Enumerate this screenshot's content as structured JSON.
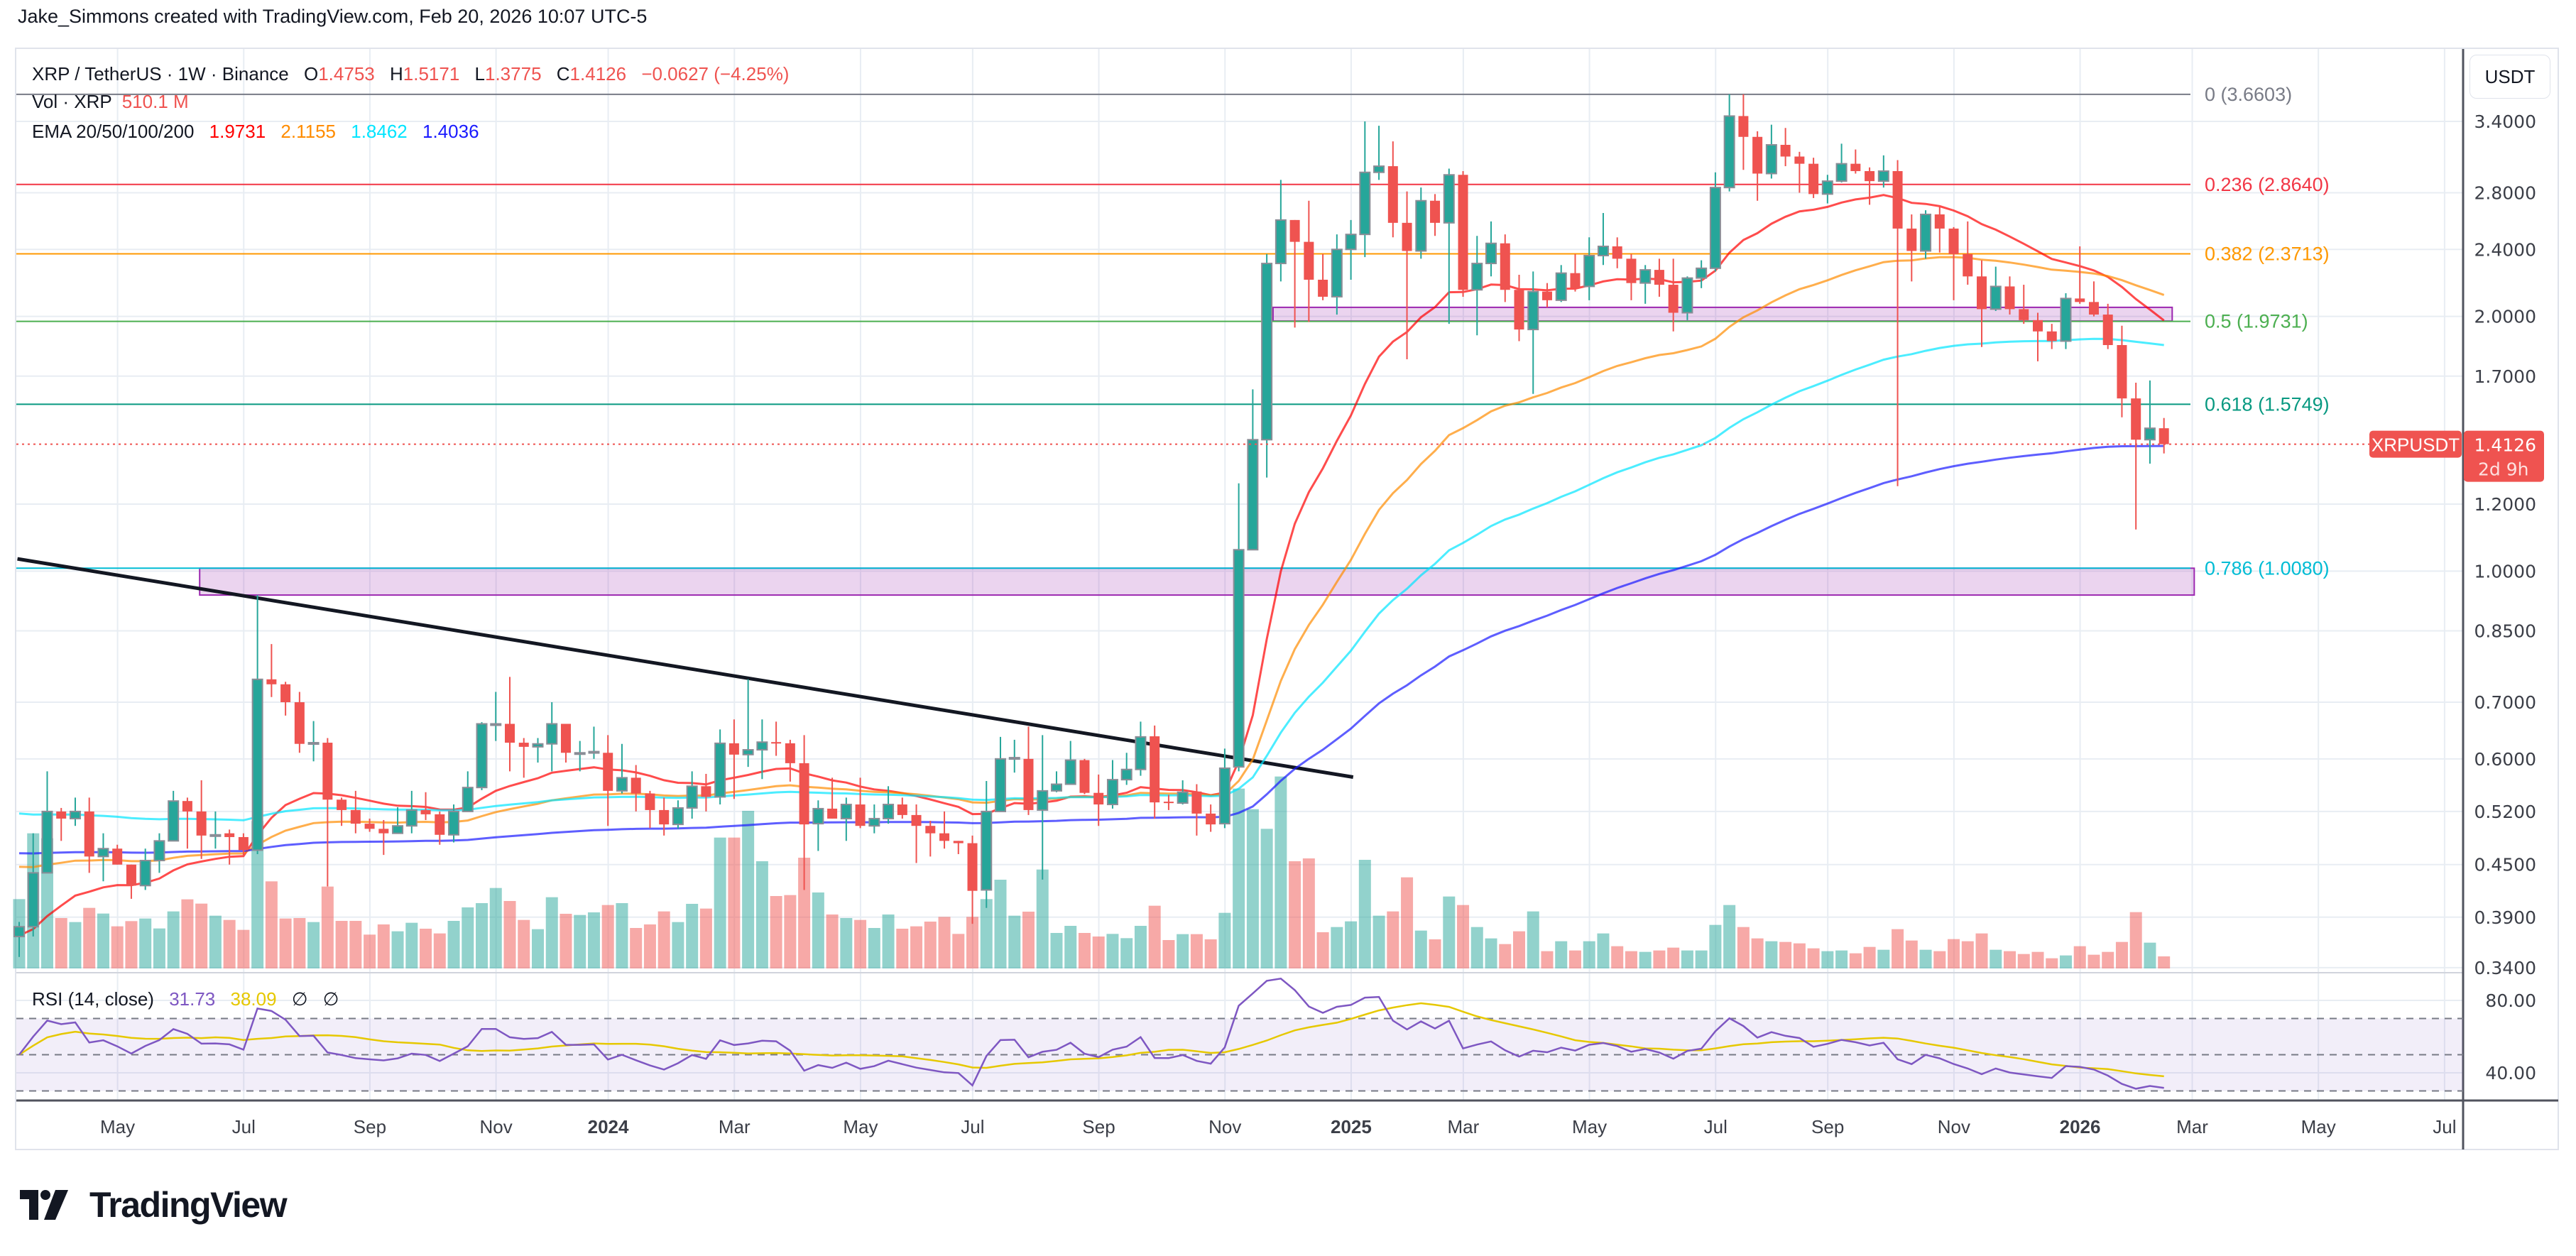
{
  "header": {
    "title": "Jake_Simmons created with TradingView.com, Feb 20, 2026 10:07 UTC-5"
  },
  "legend": {
    "symbol": "XRP / TetherUS · 1W · Binance",
    "o_label": "O",
    "open": "1.4753",
    "h_label": "H",
    "high": "1.5171",
    "l_label": "L",
    "low": "1.3775",
    "c_label": "C",
    "close": "1.4126",
    "change": "−0.0627 (−4.25%)",
    "vol_label": "Vol · XRP",
    "vol_value": "510.1 M",
    "ema_label": "EMA 20/50/100/200",
    "ema_values": [
      "1.9731",
      "2.1155",
      "1.8462",
      "1.4036"
    ]
  },
  "rsi_legend": {
    "label": "RSI (14, close)",
    "value": "31.73",
    "ma_value": "38.09",
    "extra": [
      "∅",
      "∅"
    ]
  },
  "price_axis": {
    "currency": "USDT"
  },
  "last_price": {
    "symbol": "XRPUSDT",
    "price": "1.4126",
    "countdown": "2d 9h"
  },
  "brand": {
    "logo_text": "TradingView"
  },
  "colors": {
    "up": "#26a69a",
    "down": "#ef5350",
    "ema20": "#ff0000",
    "ema50": "#ff8c00",
    "ema100": "#00e5ff",
    "ema200": "#1a1aff",
    "rsi": "#7e57c2",
    "rsi_ma": "#e6c800",
    "zone": "#9c27b0",
    "trendline": "#131722"
  },
  "chart_data": {
    "type": "candlestick",
    "title": "XRP / TetherUS · 1W · Binance",
    "interval": "1W",
    "first_bar_date": "2023-03-13",
    "y_scale": "log",
    "ylim": [
      0.34,
      3.66
    ],
    "y_ticks": [
      {
        "label": "3.4000",
        "value": 3.4
      },
      {
        "label": "2.8000",
        "value": 2.8
      },
      {
        "label": "2.4000",
        "value": 2.4
      },
      {
        "label": "2.0000",
        "value": 2.0
      },
      {
        "label": "1.7000",
        "value": 1.7
      },
      {
        "label": "1.2000",
        "value": 1.2
      },
      {
        "label": "1.0000",
        "value": 1.0
      },
      {
        "label": "0.8500",
        "value": 0.85
      },
      {
        "label": "0.7000",
        "value": 0.7
      },
      {
        "label": "0.6000",
        "value": 0.6
      },
      {
        "label": "0.5200",
        "value": 0.52
      },
      {
        "label": "0.4500",
        "value": 0.45
      },
      {
        "label": "0.3900",
        "value": 0.39
      },
      {
        "label": "0.3400",
        "value": 0.34
      }
    ],
    "x_ticks": [
      {
        "label": "May",
        "date": "2023-05-01",
        "bold": false
      },
      {
        "label": "Jul",
        "date": "2023-07-03",
        "bold": false
      },
      {
        "label": "Sep",
        "date": "2023-09-04",
        "bold": false
      },
      {
        "label": "Nov",
        "date": "2023-11-06",
        "bold": false
      },
      {
        "label": "2024",
        "date": "2024-01-01",
        "bold": true
      },
      {
        "label": "Mar",
        "date": "2024-03-04",
        "bold": false
      },
      {
        "label": "May",
        "date": "2024-05-06",
        "bold": false
      },
      {
        "label": "Jul",
        "date": "2024-07-01",
        "bold": false
      },
      {
        "label": "Sep",
        "date": "2024-09-02",
        "bold": false
      },
      {
        "label": "Nov",
        "date": "2024-11-04",
        "bold": false
      },
      {
        "label": "2025",
        "date": "2025-01-06",
        "bold": true
      },
      {
        "label": "Mar",
        "date": "2025-03-03",
        "bold": false
      },
      {
        "label": "May",
        "date": "2025-05-05",
        "bold": false
      },
      {
        "label": "Jul",
        "date": "2025-07-07",
        "bold": false
      },
      {
        "label": "Sep",
        "date": "2025-09-01",
        "bold": false
      },
      {
        "label": "Nov",
        "date": "2025-11-03",
        "bold": false
      },
      {
        "label": "2026",
        "date": "2026-01-05",
        "bold": true
      },
      {
        "label": "Mar",
        "date": "2026-03-02",
        "bold": false
      },
      {
        "label": "May",
        "date": "2026-05-04",
        "bold": false
      },
      {
        "label": "Jul",
        "date": "2026-07-06",
        "bold": false
      }
    ],
    "ohlc": [
      [
        0.37,
        0.385,
        0.35,
        0.38
      ],
      [
        0.38,
        0.49,
        0.37,
        0.44
      ],
      [
        0.44,
        0.58,
        0.44,
        0.52
      ],
      [
        0.52,
        0.525,
        0.48,
        0.51
      ],
      [
        0.51,
        0.54,
        0.5,
        0.52
      ],
      [
        0.52,
        0.54,
        0.44,
        0.46
      ],
      [
        0.46,
        0.49,
        0.43,
        0.47
      ],
      [
        0.47,
        0.475,
        0.45,
        0.45
      ],
      [
        0.45,
        0.45,
        0.41,
        0.425
      ],
      [
        0.425,
        0.47,
        0.42,
        0.455
      ],
      [
        0.455,
        0.49,
        0.44,
        0.48
      ],
      [
        0.48,
        0.55,
        0.48,
        0.535
      ],
      [
        0.535,
        0.54,
        0.47,
        0.52
      ],
      [
        0.52,
        0.566,
        0.457,
        0.487
      ],
      [
        0.488,
        0.52,
        0.47,
        0.488
      ],
      [
        0.49,
        0.495,
        0.45,
        0.485
      ],
      [
        0.485,
        0.49,
        0.46,
        0.468
      ],
      [
        0.468,
        0.937,
        0.463,
        0.745
      ],
      [
        0.745,
        0.82,
        0.71,
        0.735
      ],
      [
        0.735,
        0.74,
        0.675,
        0.7
      ],
      [
        0.7,
        0.72,
        0.61,
        0.625
      ],
      [
        0.627,
        0.665,
        0.596,
        0.627
      ],
      [
        0.627,
        0.635,
        0.424,
        0.537
      ],
      [
        0.537,
        0.54,
        0.5,
        0.522
      ],
      [
        0.522,
        0.55,
        0.49,
        0.503
      ],
      [
        0.503,
        0.51,
        0.492,
        0.496
      ],
      [
        0.496,
        0.508,
        0.462,
        0.49
      ],
      [
        0.49,
        0.526,
        0.49,
        0.5
      ],
      [
        0.5,
        0.55,
        0.49,
        0.522
      ],
      [
        0.522,
        0.548,
        0.508,
        0.516
      ],
      [
        0.516,
        0.52,
        0.475,
        0.488
      ],
      [
        0.488,
        0.53,
        0.478,
        0.52
      ],
      [
        0.52,
        0.58,
        0.52,
        0.555
      ],
      [
        0.555,
        0.663,
        0.551,
        0.66
      ],
      [
        0.66,
        0.72,
        0.63,
        0.66
      ],
      [
        0.66,
        0.75,
        0.58,
        0.627
      ],
      [
        0.627,
        0.635,
        0.57,
        0.62
      ],
      [
        0.62,
        0.635,
        0.594,
        0.625
      ],
      [
        0.625,
        0.7,
        0.58,
        0.66
      ],
      [
        0.66,
        0.66,
        0.594,
        0.61
      ],
      [
        0.61,
        0.63,
        0.58,
        0.61
      ],
      [
        0.61,
        0.655,
        0.6,
        0.612
      ],
      [
        0.61,
        0.64,
        0.5,
        0.55
      ],
      [
        0.55,
        0.625,
        0.546,
        0.57
      ],
      [
        0.57,
        0.59,
        0.52,
        0.546
      ],
      [
        0.546,
        0.55,
        0.497,
        0.522
      ],
      [
        0.522,
        0.54,
        0.487,
        0.502
      ],
      [
        0.502,
        0.536,
        0.496,
        0.525
      ],
      [
        0.525,
        0.58,
        0.51,
        0.557
      ],
      [
        0.557,
        0.576,
        0.52,
        0.541
      ],
      [
        0.541,
        0.65,
        0.53,
        0.626
      ],
      [
        0.626,
        0.668,
        0.538,
        0.607
      ],
      [
        0.607,
        0.745,
        0.587,
        0.615
      ],
      [
        0.615,
        0.668,
        0.568,
        0.628
      ],
      [
        0.628,
        0.664,
        0.605,
        0.626
      ],
      [
        0.626,
        0.632,
        0.564,
        0.593
      ],
      [
        0.593,
        0.64,
        0.42,
        0.502
      ],
      [
        0.503,
        0.536,
        0.467,
        0.524
      ],
      [
        0.524,
        0.57,
        0.51,
        0.51
      ],
      [
        0.51,
        0.54,
        0.48,
        0.53
      ],
      [
        0.53,
        0.57,
        0.497,
        0.5
      ],
      [
        0.5,
        0.53,
        0.49,
        0.51
      ],
      [
        0.51,
        0.557,
        0.503,
        0.53
      ],
      [
        0.53,
        0.54,
        0.51,
        0.515
      ],
      [
        0.515,
        0.53,
        0.452,
        0.5
      ],
      [
        0.5,
        0.507,
        0.46,
        0.49
      ],
      [
        0.49,
        0.52,
        0.47,
        0.48
      ],
      [
        0.48,
        0.48,
        0.463,
        0.477
      ],
      [
        0.477,
        0.487,
        0.383,
        0.419
      ],
      [
        0.42,
        0.565,
        0.4,
        0.52
      ],
      [
        0.52,
        0.637,
        0.52,
        0.6
      ],
      [
        0.6,
        0.632,
        0.578,
        0.602
      ],
      [
        0.6,
        0.655,
        0.515,
        0.522
      ],
      [
        0.522,
        0.64,
        0.432,
        0.55
      ],
      [
        0.55,
        0.58,
        0.548,
        0.56
      ],
      [
        0.56,
        0.63,
        0.56,
        0.598
      ],
      [
        0.598,
        0.6,
        0.545,
        0.547
      ],
      [
        0.547,
        0.575,
        0.5,
        0.53
      ],
      [
        0.53,
        0.598,
        0.524,
        0.567
      ],
      [
        0.567,
        0.61,
        0.559,
        0.583
      ],
      [
        0.583,
        0.664,
        0.573,
        0.637
      ],
      [
        0.638,
        0.657,
        0.51,
        0.533
      ],
      [
        0.534,
        0.544,
        0.522,
        0.532
      ],
      [
        0.532,
        0.566,
        0.53,
        0.548
      ],
      [
        0.549,
        0.56,
        0.487,
        0.517
      ],
      [
        0.517,
        0.53,
        0.492,
        0.502
      ],
      [
        0.503,
        0.617,
        0.497,
        0.585
      ],
      [
        0.587,
        1.27,
        0.58,
        1.06
      ],
      [
        1.06,
        1.64,
        1.06,
        1.43
      ],
      [
        1.43,
        2.37,
        1.29,
        2.31
      ],
      [
        2.31,
        2.9,
        2.2,
        2.6
      ],
      [
        2.6,
        2.6,
        1.94,
        2.45
      ],
      [
        2.45,
        2.74,
        1.97,
        2.21
      ],
      [
        2.21,
        2.37,
        2.09,
        2.11
      ],
      [
        2.11,
        2.5,
        2.01,
        2.4
      ],
      [
        2.4,
        2.6,
        2.21,
        2.5
      ],
      [
        2.5,
        3.4,
        2.35,
        2.96
      ],
      [
        2.96,
        3.36,
        2.9,
        3.01
      ],
      [
        3.01,
        3.22,
        2.48,
        2.58
      ],
      [
        2.58,
        2.81,
        1.78,
        2.39
      ],
      [
        2.39,
        2.84,
        2.34,
        2.74
      ],
      [
        2.74,
        2.79,
        2.49,
        2.58
      ],
      [
        2.58,
        2.99,
        1.96,
        2.94
      ],
      [
        2.94,
        2.97,
        2.11,
        2.15
      ],
      [
        2.15,
        2.49,
        1.9,
        2.31
      ],
      [
        2.31,
        2.59,
        2.23,
        2.44
      ],
      [
        2.44,
        2.5,
        2.08,
        2.15
      ],
      [
        2.15,
        2.24,
        1.87,
        1.93
      ],
      [
        1.93,
        2.26,
        1.62,
        2.14
      ],
      [
        2.14,
        2.19,
        2.05,
        2.09
      ],
      [
        2.09,
        2.3,
        2.08,
        2.25
      ],
      [
        2.25,
        2.37,
        2.14,
        2.16
      ],
      [
        2.17,
        2.48,
        2.09,
        2.36
      ],
      [
        2.36,
        2.65,
        2.3,
        2.42
      ],
      [
        2.42,
        2.48,
        2.28,
        2.34
      ],
      [
        2.34,
        2.37,
        2.09,
        2.19
      ],
      [
        2.19,
        2.3,
        2.07,
        2.27
      ],
      [
        2.27,
        2.34,
        2.11,
        2.18
      ],
      [
        2.18,
        2.34,
        1.92,
        2.02
      ],
      [
        2.02,
        2.23,
        1.98,
        2.22
      ],
      [
        2.22,
        2.33,
        2.16,
        2.28
      ],
      [
        2.28,
        2.96,
        2.26,
        2.84
      ],
      [
        2.84,
        3.66,
        2.81,
        3.45
      ],
      [
        3.45,
        3.66,
        2.98,
        3.26
      ],
      [
        3.26,
        3.31,
        2.74,
        2.95
      ],
      [
        2.95,
        3.37,
        2.91,
        3.19
      ],
      [
        3.19,
        3.34,
        3.01,
        3.09
      ],
      [
        3.09,
        3.13,
        2.8,
        3.03
      ],
      [
        3.03,
        3.08,
        2.76,
        2.79
      ],
      [
        2.79,
        2.94,
        2.72,
        2.89
      ],
      [
        2.89,
        3.2,
        2.88,
        3.03
      ],
      [
        3.03,
        3.15,
        2.95,
        2.97
      ],
      [
        2.97,
        3.0,
        2.71,
        2.89
      ],
      [
        2.89,
        3.1,
        2.84,
        2.97
      ],
      [
        2.97,
        3.06,
        1.26,
        2.54
      ],
      [
        2.54,
        2.64,
        2.2,
        2.39
      ],
      [
        2.39,
        2.67,
        2.34,
        2.64
      ],
      [
        2.64,
        2.7,
        2.38,
        2.54
      ],
      [
        2.54,
        2.55,
        2.09,
        2.37
      ],
      [
        2.37,
        2.59,
        2.18,
        2.23
      ],
      [
        2.23,
        2.33,
        1.84,
        2.04
      ],
      [
        2.04,
        2.29,
        2.03,
        2.17
      ],
      [
        2.17,
        2.23,
        2.01,
        2.04
      ],
      [
        2.04,
        2.18,
        1.96,
        1.98
      ],
      [
        1.98,
        2.02,
        1.77,
        1.92
      ],
      [
        1.92,
        1.96,
        1.83,
        1.87
      ],
      [
        1.87,
        2.13,
        1.83,
        2.1
      ],
      [
        2.1,
        2.42,
        2.07,
        2.08
      ],
      [
        2.08,
        2.2,
        2.0,
        2.01
      ],
      [
        2.01,
        2.07,
        1.83,
        1.85
      ],
      [
        1.85,
        1.95,
        1.52,
        1.6
      ],
      [
        1.6,
        1.67,
        1.12,
        1.43
      ],
      [
        1.43,
        1.68,
        1.34,
        1.4753
      ],
      [
        1.4753,
        1.5171,
        1.3775,
        1.4126
      ]
    ],
    "volume_millions": [
      2930,
      5710,
      5500,
      2130,
      1960,
      2560,
      2320,
      1780,
      2000,
      2110,
      1690,
      2410,
      2920,
      2740,
      2230,
      2050,
      1630,
      6230,
      3680,
      2110,
      2130,
      1960,
      3460,
      2010,
      2010,
      1430,
      1860,
      1570,
      1930,
      1680,
      1480,
      2010,
      2580,
      2760,
      3400,
      2850,
      2050,
      1660,
      3010,
      2310,
      2260,
      2370,
      2680,
      2760,
      1710,
      1860,
      2410,
      1960,
      2730,
      2530,
      5530,
      5530,
      6660,
      4530,
      3060,
      3100,
      4680,
      3210,
      2280,
      2130,
      2050,
      1710,
      2280,
      1680,
      1780,
      1980,
      2180,
      1460,
      2180,
      2930,
      3750,
      2230,
      2400,
      4180,
      1500,
      1800,
      1500,
      1350,
      1460,
      1280,
      1800,
      2650,
      1200,
      1450,
      1450,
      1230,
      2350,
      7600,
      6730,
      5900,
      8110,
      4530,
      4650,
      1530,
      1750,
      1990,
      4590,
      2230,
      2410,
      3850,
      1600,
      1230,
      3040,
      2680,
      1750,
      1270,
      1030,
      1570,
      2410,
      730,
      1150,
      760,
      1150,
      1480,
      940,
      730,
      700,
      760,
      880,
      760,
      760,
      1840,
      2680,
      1750,
      1270,
      1150,
      1120,
      1060,
      850,
      730,
      760,
      640,
      910,
      790,
      1660,
      1180,
      790,
      730,
      1240,
      1150,
      1480,
      790,
      730,
      610,
      700,
      430,
      550,
      940,
      580,
      700,
      1120,
      2380,
      1090,
      510
    ],
    "ema_periods": [
      20,
      50,
      100,
      200
    ],
    "ema_seed": [
      0.37,
      0.45,
      0.52,
      0.465
    ],
    "ema_last": [
      1.9731,
      2.1155,
      1.8462,
      1.4036
    ],
    "rsi": {
      "period": 14,
      "last": 31.73,
      "ma_last": 38.09,
      "upper": 70,
      "middle": 50,
      "lower": 30,
      "ticks": [
        {
          "label": "80.00",
          "value": 80
        },
        {
          "label": "40.00",
          "value": 40
        }
      ]
    },
    "fib_levels": [
      {
        "ratio": 0,
        "price": 3.6603,
        "label": "0 (3.6603)",
        "color": "#787b86"
      },
      {
        "ratio": 0.236,
        "price": 2.864,
        "label": "0.236 (2.8640)",
        "color": "#f23645"
      },
      {
        "ratio": 0.382,
        "price": 2.3713,
        "label": "0.382 (2.3713)",
        "color": "#ff9800"
      },
      {
        "ratio": 0.5,
        "price": 1.9731,
        "label": "0.5 (1.9731)",
        "color": "#4caf50"
      },
      {
        "ratio": 0.618,
        "price": 1.5749,
        "label": "0.618 (1.5749)",
        "color": "#089981"
      },
      {
        "ratio": 0.786,
        "price": 1.008,
        "label": "0.786 (1.0080)",
        "color": "#00bcd4"
      }
    ],
    "zones": [
      {
        "from": "2024-11-28",
        "to": "2026-02-20",
        "top": 2.05,
        "bottom": 1.975
      },
      {
        "from": "2023-06-11",
        "to": "2026-03-03",
        "top": 1.008,
        "bottom": 0.937
      }
    ],
    "trendline": {
      "from": {
        "date": "2023-03-12",
        "price": 1.034
      },
      "to": {
        "date": "2025-01-07",
        "price": 0.571
      }
    },
    "last_price": 1.4126
  }
}
